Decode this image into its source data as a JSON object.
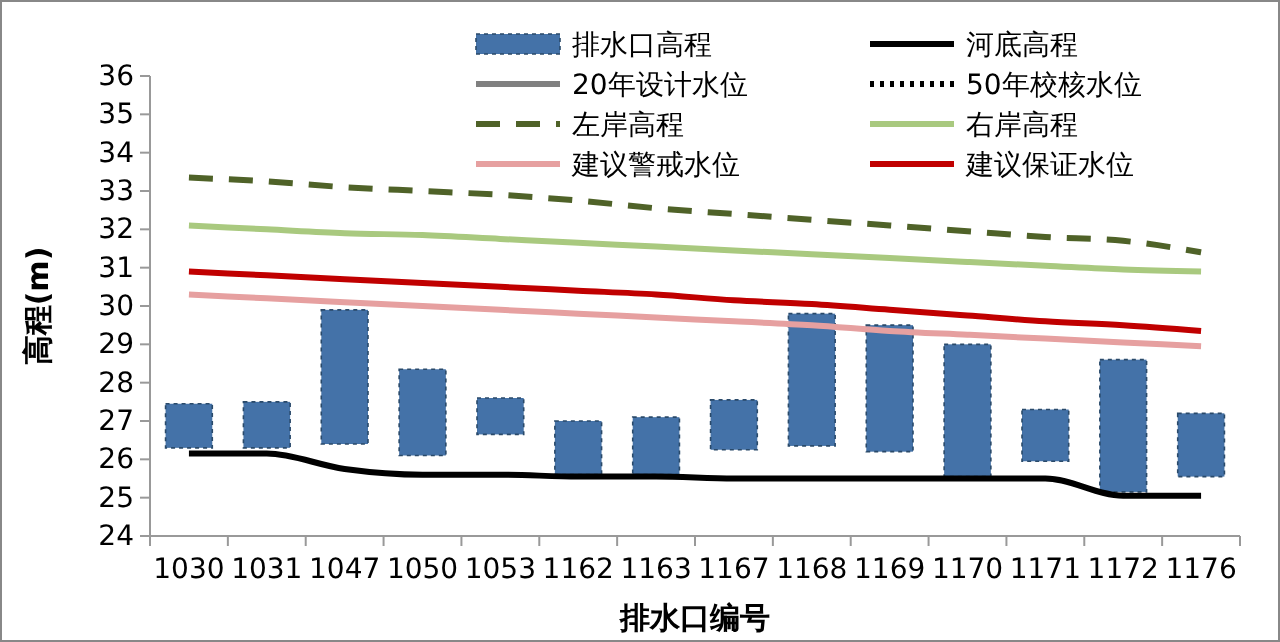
{
  "chart_data": {
    "type": "bar",
    "xlabel": "排水口编号",
    "ylabel": "高程(m)",
    "categories": [
      "1030",
      "1031",
      "1047",
      "1050",
      "1053",
      "1162",
      "1163",
      "1167",
      "1168",
      "1169",
      "1170",
      "1171",
      "1172",
      "1176"
    ],
    "ylim": [
      24,
      36
    ],
    "yticks": [
      24,
      25,
      26,
      27,
      28,
      29,
      30,
      31,
      32,
      33,
      34,
      35,
      36
    ],
    "grid": false,
    "legend": "top",
    "series": [
      {
        "name": "排水口高程",
        "color": "#4472a8",
        "base": [
          26.3,
          26.3,
          26.4,
          26.1,
          26.65,
          25.6,
          25.6,
          26.25,
          26.35,
          26.2,
          25.55,
          25.95,
          25.15,
          25.55
        ],
        "values": [
          1.15,
          1.2,
          3.5,
          2.25,
          0.95,
          1.4,
          1.5,
          1.3,
          3.45,
          3.3,
          3.45,
          1.35,
          3.45,
          1.65
        ]
      },
      {
        "name": "河底高程",
        "type": "line",
        "color": "#000000",
        "line_style": "solid",
        "values": [
          26.15,
          26.15,
          25.75,
          25.6,
          25.6,
          25.55,
          25.55,
          25.5,
          25.5,
          25.5,
          25.5,
          25.5,
          25.05,
          25.05
        ]
      },
      {
        "name": "20年设计水位",
        "type": "line",
        "color": "#808080",
        "line_style": "solid",
        "values": [
          null,
          null,
          null,
          null,
          null,
          null,
          null,
          null,
          null,
          null,
          null,
          null,
          null,
          null
        ]
      },
      {
        "name": "50年校核水位",
        "type": "line",
        "color": "#000000",
        "line_style": "dotted",
        "values": [
          null,
          null,
          null,
          null,
          null,
          null,
          null,
          null,
          null,
          null,
          null,
          null,
          null,
          null
        ]
      },
      {
        "name": "左岸高程",
        "type": "line",
        "color": "#4f6228",
        "line_style": "dashed",
        "values": [
          33.35,
          33.25,
          33.1,
          33.0,
          32.9,
          32.75,
          32.55,
          32.4,
          32.25,
          32.1,
          31.95,
          31.8,
          31.7,
          31.4
        ]
      },
      {
        "name": "右岸高程",
        "type": "line",
        "color": "#a9c97f",
        "line_style": "solid",
        "values": [
          32.1,
          32.0,
          31.9,
          31.85,
          31.75,
          31.65,
          31.55,
          31.45,
          31.35,
          31.25,
          31.15,
          31.05,
          30.95,
          30.9
        ]
      },
      {
        "name": "建议警戒水位",
        "type": "line",
        "color": "#e6a0a0",
        "line_style": "solid",
        "values": [
          30.3,
          30.2,
          30.1,
          30.0,
          29.9,
          29.8,
          29.7,
          29.6,
          29.5,
          29.35,
          29.25,
          29.15,
          29.05,
          28.95
        ]
      },
      {
        "name": "建议保证水位",
        "type": "line",
        "color": "#c00000",
        "line_style": "solid",
        "values": [
          30.9,
          30.8,
          30.7,
          30.6,
          30.5,
          30.4,
          30.3,
          30.15,
          30.05,
          29.9,
          29.75,
          29.6,
          29.5,
          29.35
        ]
      }
    ]
  }
}
